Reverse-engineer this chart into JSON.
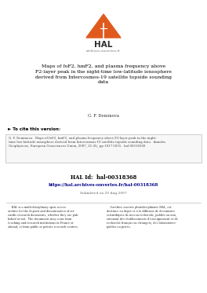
{
  "bg_color": "#ffffff",
  "title": "Maps of foF2, hmF2, and plasma frequency above\nF2-layer peak in the night-time low-latitude ionosphere\nderived from Intercosmos-19 satellite topside sounding\ndata",
  "author": "G. F. Deminova",
  "cite_header": "► To cite this version:",
  "cite_text": "G. F. Deminova.  Maps of foF2, hmF2, and plasma frequency above F2-layer peak in the night-\ntime low-latitude ionosphere derived from Intercosmos-19 satellite topside sounding data.  Annales\nGeophysicae, European Geosciences Union, 2007, 25 (8), pp.1817-1835.  hal-00318368",
  "hal_id_label": "HAL Id:  hal-00318368",
  "hal_url": "https://hal.archives-ouvertes.fr/hal-00318368",
  "submitted": "Submitted on 29 Aug 2007",
  "hal_en": "    HAL is a multi-disciplinary open access\narchive for the deposit and dissemination of sci-\nentific research documents, whether they are pub-\nlished or not.  The documents may come from\nteaching and research institutions in France or\nabroad, or from public or private research centres.",
  "hal_fr": "    L’archive ouverte pluridisciplinaire HAL, est\ndestinee au depot et à la diffusion de documents\nscientifiques de niveau recherche, publiés ou non,\némanant des établissements d’enseignement et de\nrecherche français ou étrangers, des laboratoires\npublics ou privés.",
  "logo_orange": "#e05a1e",
  "logo_dark": "#2c2c2c",
  "url_color": "#00008b",
  "cite_box_bg": "#f7f7f7",
  "cite_box_edge": "#bbbbbb",
  "separator_color": "#bbbbbb"
}
